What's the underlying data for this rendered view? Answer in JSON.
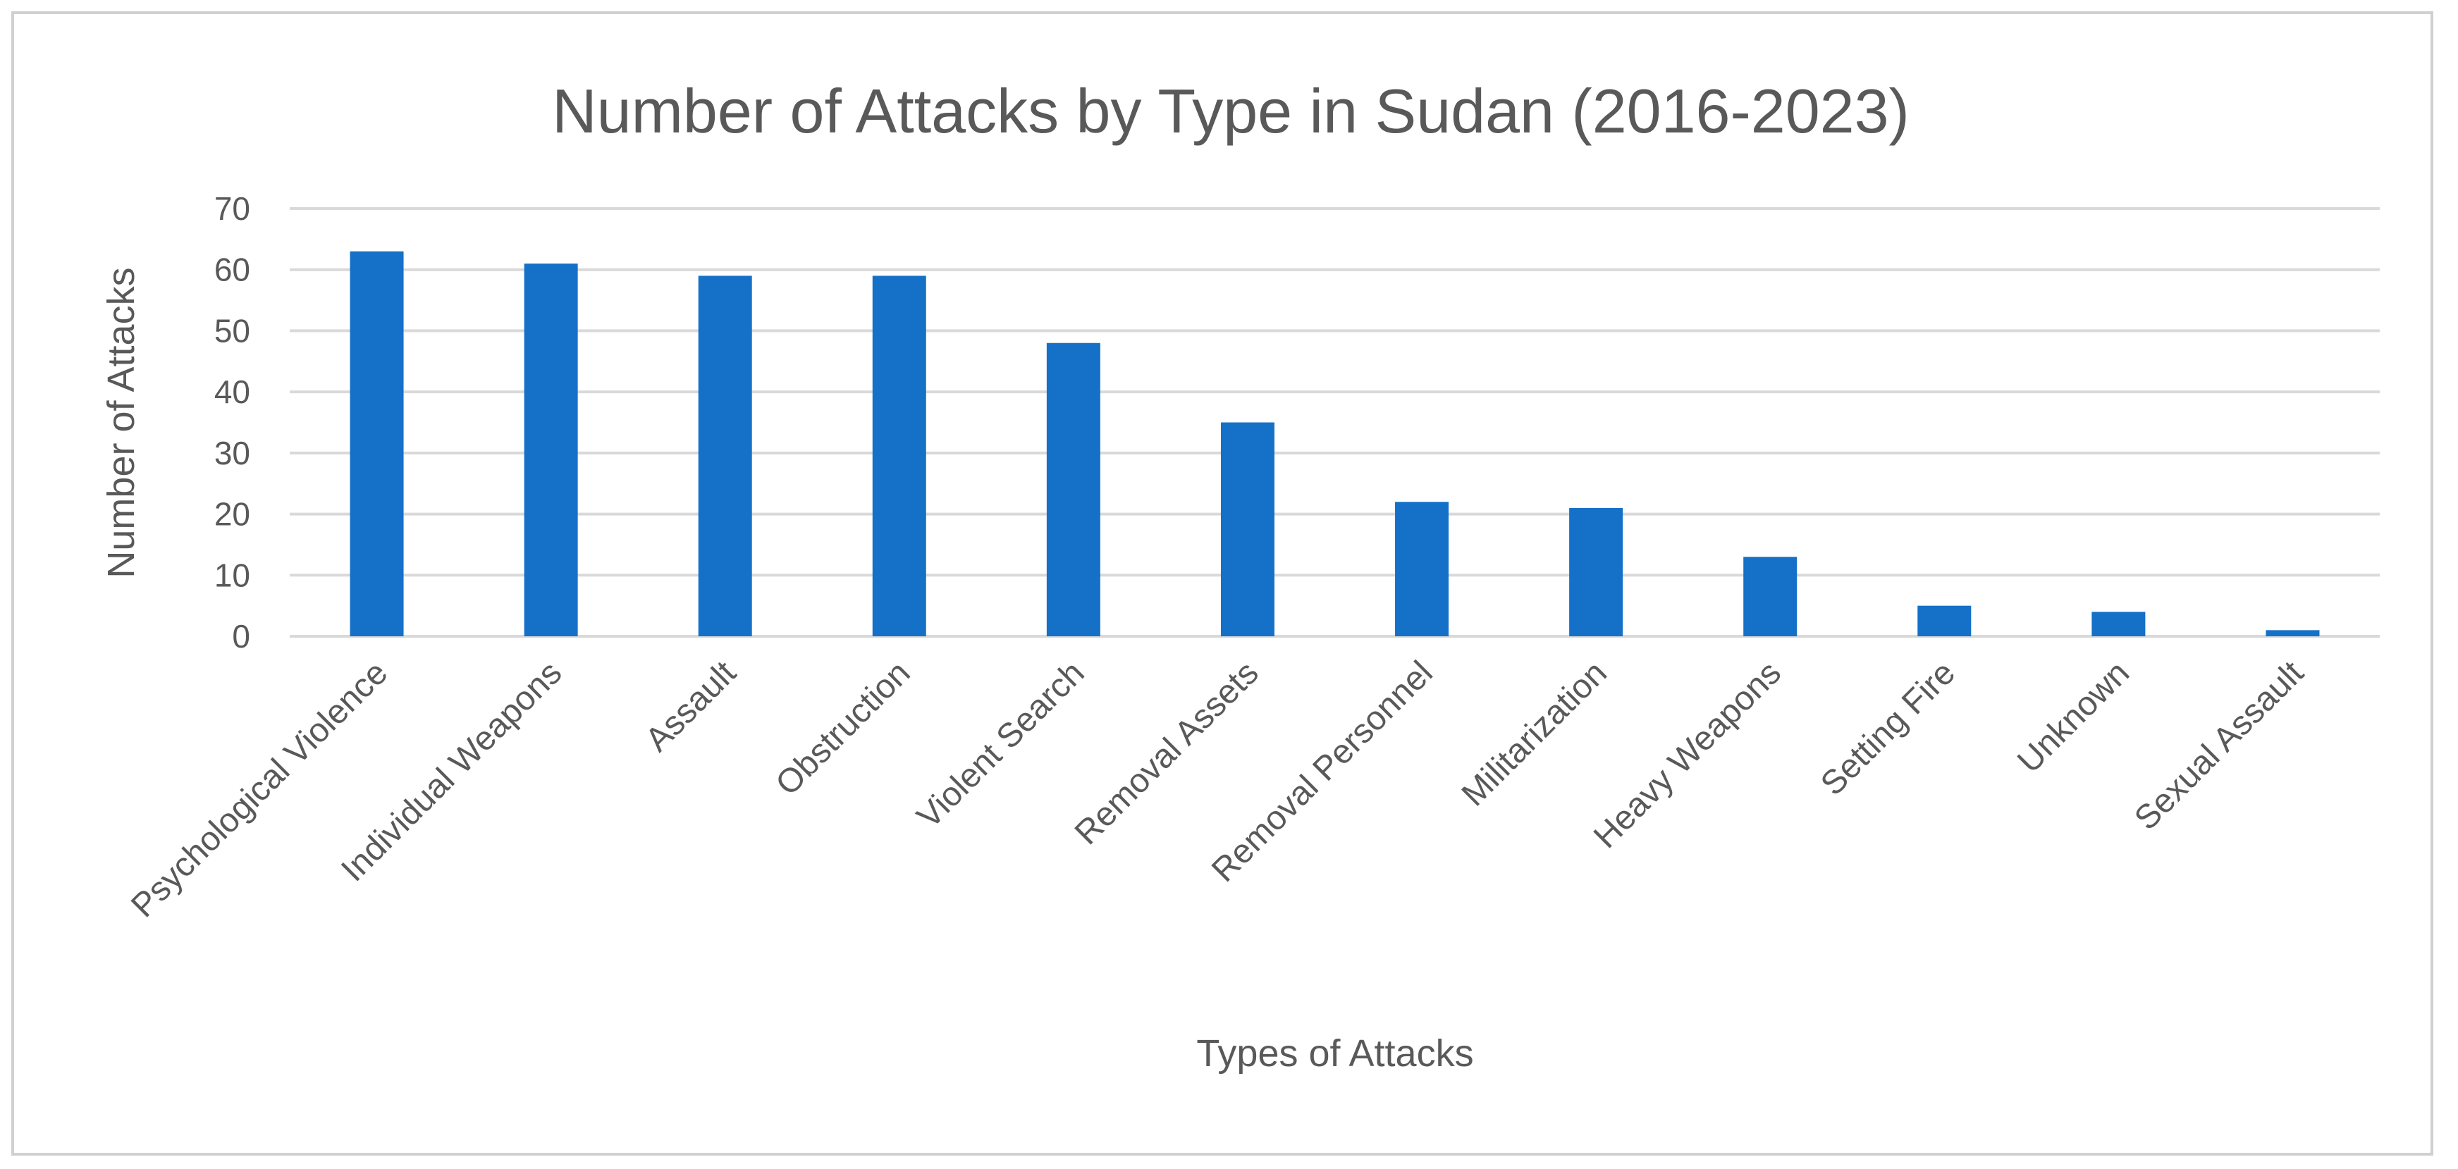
{
  "chart_data": {
    "type": "bar",
    "title": "Number of Attacks by Type in Sudan (2016-2023)",
    "xlabel": "Types of Attacks",
    "ylabel": "Number of Attacks",
    "ylim": [
      0,
      70
    ],
    "yticks": [
      0,
      10,
      20,
      30,
      40,
      50,
      60,
      70
    ],
    "grid": true,
    "legend": "none",
    "bar_color": "#1570C8",
    "categories": [
      "Psychological Violence",
      "Individual Weapons",
      "Assault",
      "Obstruction",
      "Violent Search",
      "Removal Assets",
      "Removal Personnel",
      "Militarization",
      "Heavy Weapons",
      "Setting Fire",
      "Unknown",
      "Sexual Assault"
    ],
    "values": [
      63,
      61,
      59,
      59,
      48,
      35,
      22,
      21,
      13,
      5,
      4,
      1
    ]
  }
}
